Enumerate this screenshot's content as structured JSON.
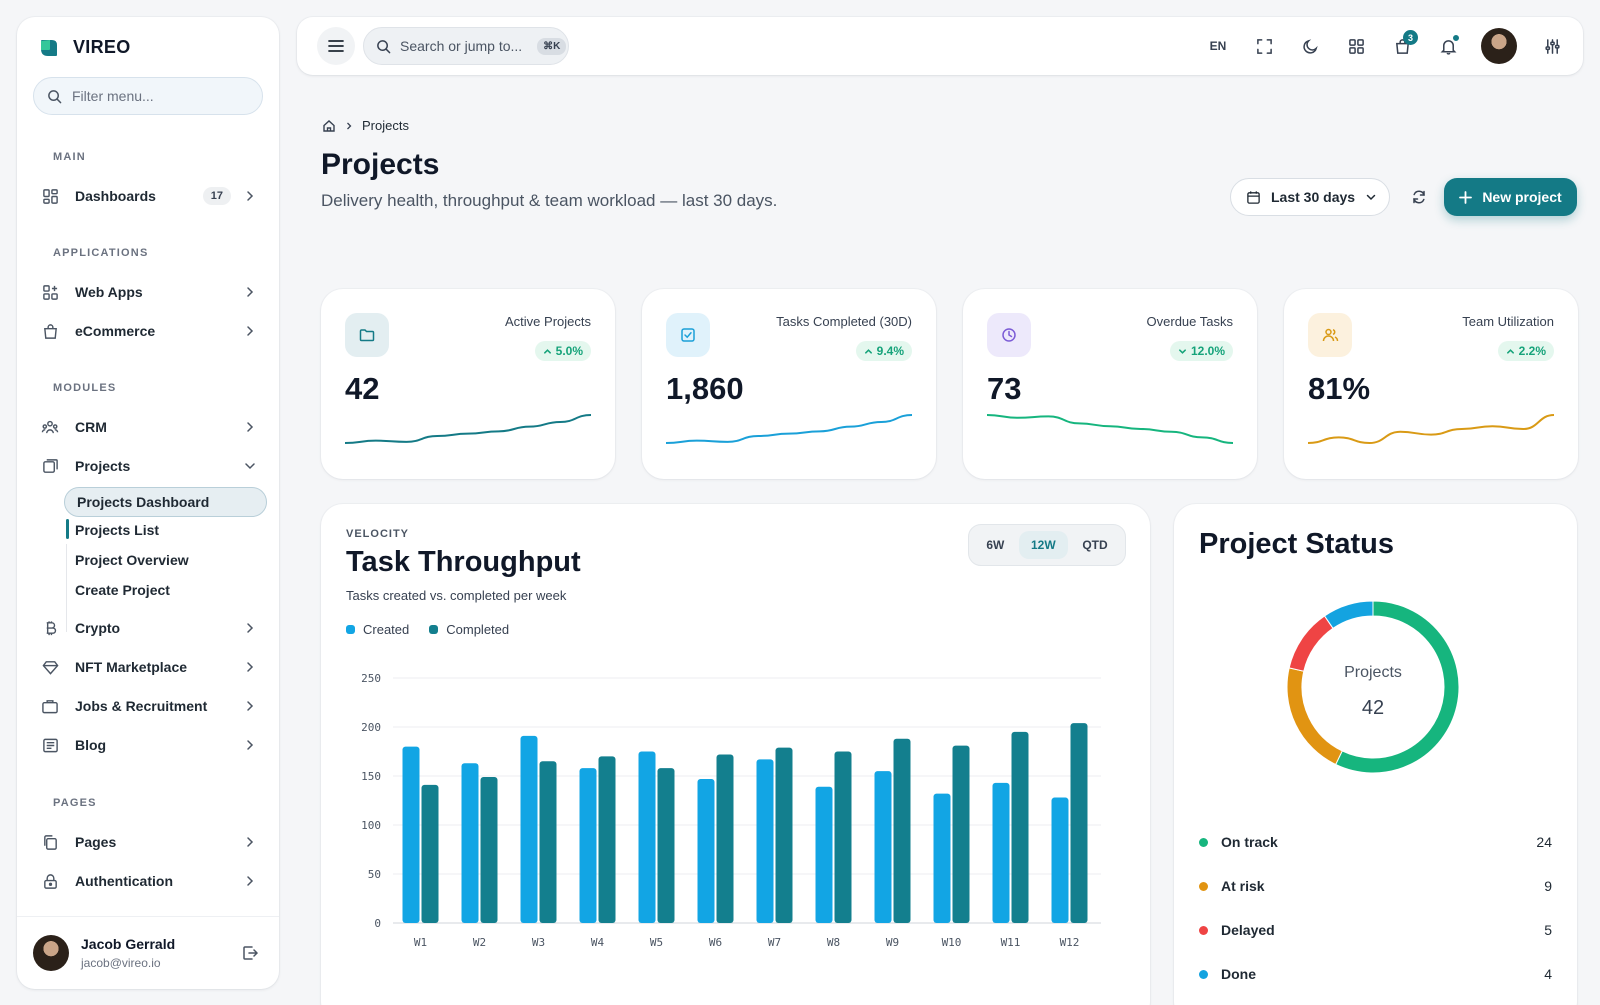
{
  "brand": {
    "name": "VIREO"
  },
  "sidebar": {
    "filter_placeholder": "Filter menu...",
    "sections": {
      "main": "MAIN",
      "applications": "APPLICATIONS",
      "modules": "MODULES",
      "pages": "PAGES"
    },
    "dashboards": {
      "label": "Dashboards",
      "badge": "17"
    },
    "web_apps": "Web Apps",
    "ecommerce": "eCommerce",
    "crm": "CRM",
    "projects": "Projects",
    "projects_sub": [
      "Projects Dashboard",
      "Projects List",
      "Project Overview",
      "Create Project"
    ],
    "crypto": "Crypto",
    "nft": "NFT Marketplace",
    "jobs": "Jobs & Recruitment",
    "blog": "Blog",
    "pages": "Pages",
    "authentication": "Authentication",
    "user": {
      "name": "Jacob Gerrald",
      "email": "jacob@vireo.io"
    }
  },
  "topbar": {
    "search_placeholder": "Search or jump to...",
    "shortcut": "⌘K",
    "language": "EN",
    "cart_count": "3"
  },
  "header": {
    "breadcrumb": "Projects",
    "title": "Projects",
    "subtitle": "Delivery health, throughput & team workload — last 30 days.",
    "range": "Last 30 days",
    "new_project": "New project"
  },
  "kpis": [
    {
      "label": "Active Projects",
      "value": "42",
      "delta": "5.0%",
      "direction": "up",
      "color": "#147a86",
      "icon_bg": "#e3eef1",
      "trend": [
        40,
        41,
        40.5,
        43,
        44,
        45,
        47,
        49,
        52
      ]
    },
    {
      "label": "Tasks Completed (30D)",
      "value": "1,860",
      "delta": "9.4%",
      "direction": "up",
      "color": "#1aa0d8",
      "icon_bg": "#e0f2fb",
      "trend": [
        40,
        41,
        40.5,
        43,
        44,
        45,
        47,
        49,
        52
      ]
    },
    {
      "label": "Overdue Tasks",
      "value": "73",
      "delta": "12.0%",
      "direction": "down",
      "color": "#16b57e",
      "icon_bg": "#ede9fb",
      "trend": [
        52,
        51,
        51.5,
        49,
        48,
        47,
        46,
        44,
        42
      ]
    },
    {
      "label": "Team Utilization",
      "value": "81%",
      "delta": "2.2%",
      "direction": "up",
      "color": "#d99a15",
      "icon_bg": "#fcf1de",
      "trend": [
        40,
        42,
        40,
        44,
        43,
        45,
        46,
        45,
        50
      ]
    }
  ],
  "throughput": {
    "overline": "VELOCITY",
    "title": "Task Throughput",
    "subtitle": "Tasks created vs. completed per week",
    "ranges": [
      "6W",
      "12W",
      "QTD"
    ],
    "active_range": "12W"
  },
  "chart_data": {
    "type": "bar",
    "categories": [
      "W1",
      "W2",
      "W3",
      "W4",
      "W5",
      "W6",
      "W7",
      "W8",
      "W9",
      "W10",
      "W11",
      "W12"
    ],
    "series": [
      {
        "name": "Created",
        "color": "#12a5e4",
        "values": [
          180,
          163,
          191,
          158,
          175,
          147,
          167,
          139,
          155,
          132,
          143,
          128
        ]
      },
      {
        "name": "Completed",
        "color": "#137f8e",
        "values": [
          141,
          149,
          165,
          170,
          158,
          172,
          179,
          175,
          188,
          181,
          195,
          204
        ]
      }
    ],
    "yticks": [
      0,
      50,
      100,
      150,
      200,
      250
    ],
    "ylim": [
      0,
      250
    ],
    "grid": true,
    "legend": "top-left"
  },
  "status": {
    "title": "Project Status",
    "center_label": "Projects",
    "total": "42",
    "items": [
      {
        "label": "On track",
        "value": 24,
        "color": "#16b57e"
      },
      {
        "label": "At risk",
        "value": 9,
        "color": "#e19412"
      },
      {
        "label": "Delayed",
        "value": 5,
        "color": "#ef4444"
      },
      {
        "label": "Done",
        "value": 4,
        "color": "#14a3e0"
      }
    ]
  }
}
